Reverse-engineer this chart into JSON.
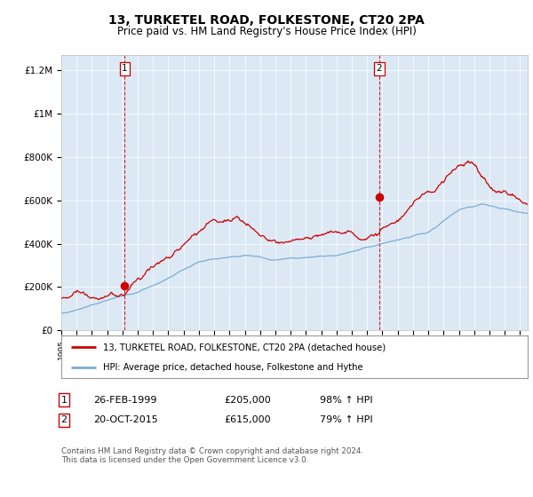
{
  "title": "13, TURKETEL ROAD, FOLKESTONE, CT20 2PA",
  "subtitle": "Price paid vs. HM Land Registry's House Price Index (HPI)",
  "red_label": "13, TURKETEL ROAD, FOLKESTONE, CT20 2PA (detached house)",
  "blue_label": "HPI: Average price, detached house, Folkestone and Hythe",
  "sale1_date": "26-FEB-1999",
  "sale1_price": 205000,
  "sale1_pct": "98% ↑ HPI",
  "sale2_date": "20-OCT-2015",
  "sale2_price": 615000,
  "sale2_pct": "79% ↑ HPI",
  "ylim": [
    0,
    1270000
  ],
  "yticks": [
    0,
    200000,
    400000,
    600000,
    800000,
    1000000,
    1200000
  ],
  "ytick_labels": [
    "£0",
    "£200K",
    "£400K",
    "£600K",
    "£800K",
    "£1M",
    "£1.2M"
  ],
  "plot_bg": "#dce9f5",
  "red_color": "#cc0000",
  "blue_color": "#7aadd4",
  "footer": "Contains HM Land Registry data © Crown copyright and database right 2024.\nThis data is licensed under the Open Government Licence v3.0.",
  "sale1_year": 1999.15,
  "sale2_year": 2015.8
}
